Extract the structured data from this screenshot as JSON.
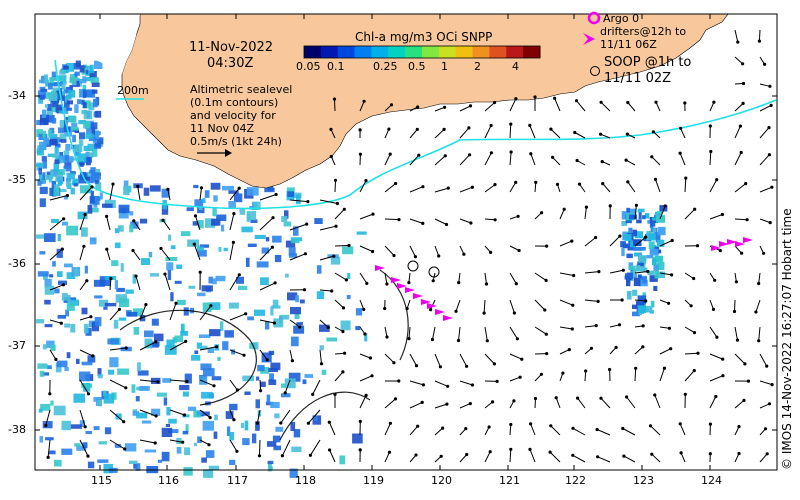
{
  "title": {
    "date": "11-Nov-2022",
    "time": "04:30Z"
  },
  "colorbar": {
    "title": "Chl-a mg/m3 OCi SNPP",
    "ticks": [
      "0.05",
      "0.1",
      "0.25",
      "0.5",
      "1",
      "2",
      "4"
    ],
    "colors": [
      "#00006a",
      "#0019b0",
      "#0048e0",
      "#0080f0",
      "#00b0e8",
      "#00d4c0",
      "#28e080",
      "#80e840",
      "#c8e020",
      "#f0c010",
      "#f09020",
      "#e05020",
      "#b81818",
      "#800000"
    ]
  },
  "contour_label": "200m",
  "annotation": {
    "line1": "Altimetric sealevel",
    "line2": "(0.1m contours)",
    "line3": "and velocity for",
    "line4": "11 Nov 04Z",
    "scale_label": "0.5m/s (1kt 24h)"
  },
  "legend": {
    "argo_line": "Argo 0",
    "drifter_line1": "drifters@12h to",
    "drifter_line2": "11/11 06Z",
    "soop_line1": "SOOP @1h to",
    "soop_line2": "11/11 02Z"
  },
  "axes": {
    "x_ticks": [
      "115",
      "116",
      "117",
      "118",
      "119",
      "120",
      "121",
      "122",
      "123",
      "124"
    ],
    "y_ticks": [
      "-34",
      "-35",
      "-36",
      "-37",
      "-38"
    ]
  },
  "copyright": "© IMOS 14-Nov-2022 16:27:07 Hobart time",
  "colors": {
    "land": "#f8c89c",
    "contour": "#22e0e8",
    "marker": "#ee00ee"
  }
}
